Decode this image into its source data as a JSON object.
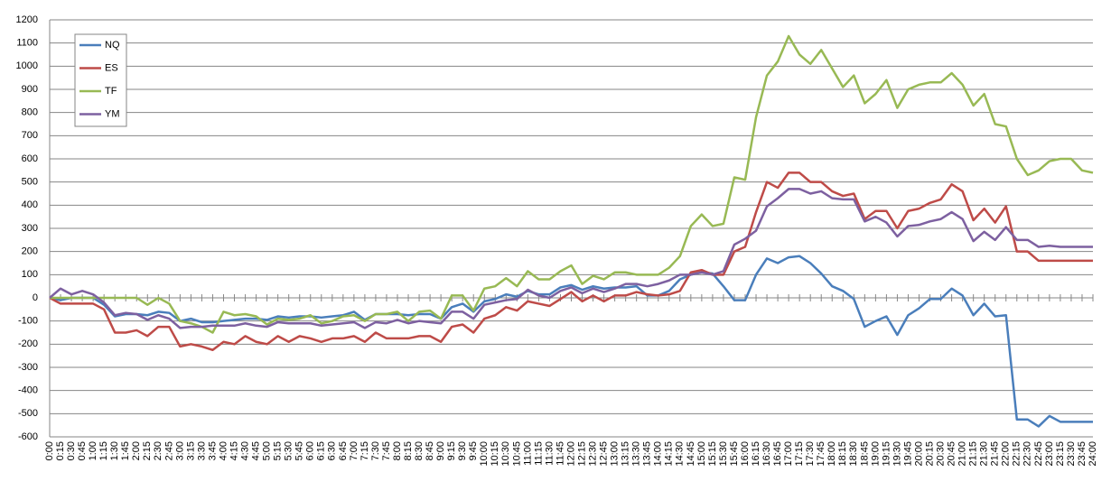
{
  "chart_data": {
    "type": "line",
    "categories": [
      "0:00",
      "0:15",
      "0:30",
      "0:45",
      "1:00",
      "1:15",
      "1:30",
      "1:45",
      "2:00",
      "2:15",
      "2:30",
      "2:45",
      "3:00",
      "3:15",
      "3:30",
      "3:45",
      "4:00",
      "4:15",
      "4:30",
      "4:45",
      "5:00",
      "5:15",
      "5:30",
      "5:45",
      "6:00",
      "6:15",
      "6:30",
      "6:45",
      "7:00",
      "7:15",
      "7:30",
      "7:45",
      "8:00",
      "8:15",
      "8:30",
      "8:45",
      "9:00",
      "9:15",
      "9:30",
      "9:45",
      "10:00",
      "10:15",
      "10:30",
      "10:45",
      "11:00",
      "11:15",
      "11:30",
      "11:45",
      "12:00",
      "12:15",
      "12:30",
      "12:45",
      "13:00",
      "13:15",
      "13:30",
      "13:45",
      "14:00",
      "14:15",
      "14:30",
      "14:45",
      "15:00",
      "15:15",
      "15:30",
      "15:45",
      "16:00",
      "16:15",
      "16:30",
      "16:45",
      "17:00",
      "17:15",
      "17:30",
      "17:45",
      "18:00",
      "18:15",
      "18:30",
      "18:45",
      "19:00",
      "19:15",
      "19:30",
      "19:45",
      "20:00",
      "20:15",
      "20:30",
      "20:45",
      "21:00",
      "21:15",
      "21:30",
      "21:45",
      "22:00",
      "22:15",
      "22:30",
      "22:45",
      "23:00",
      "23:15",
      "23:30",
      "23:45",
      "24:00"
    ],
    "series": [
      {
        "name": "NQ",
        "color": "#4a7ebb",
        "values": [
          0,
          -10,
          0,
          0,
          0,
          -30,
          -80,
          -70,
          -70,
          -75,
          -60,
          -65,
          -100,
          -90,
          -105,
          -105,
          -100,
          -95,
          -90,
          -90,
          -95,
          -80,
          -85,
          -80,
          -80,
          -85,
          -80,
          -75,
          -60,
          -95,
          -70,
          -70,
          -70,
          -75,
          -70,
          -70,
          -90,
          -40,
          -25,
          -60,
          -15,
          -5,
          15,
          5,
          30,
          15,
          15,
          45,
          55,
          35,
          50,
          40,
          45,
          45,
          50,
          10,
          10,
          30,
          80,
          100,
          110,
          105,
          50,
          -10,
          -10,
          100,
          170,
          150,
          175,
          180,
          150,
          105,
          50,
          30,
          -5,
          -125,
          -100,
          -80,
          -160,
          -75,
          -45,
          -5,
          -5,
          40,
          10,
          -75,
          -25,
          -80,
          -75,
          -525,
          -525,
          -555,
          -510,
          -535,
          -535,
          -535,
          -535
        ]
      },
      {
        "name": "ES",
        "color": "#be4b48",
        "values": [
          0,
          -25,
          -25,
          -25,
          -25,
          -50,
          -150,
          -150,
          -140,
          -165,
          -125,
          -125,
          -210,
          -200,
          -210,
          -225,
          -190,
          -200,
          -165,
          -190,
          -200,
          -165,
          -190,
          -165,
          -175,
          -190,
          -175,
          -175,
          -165,
          -190,
          -150,
          -175,
          -175,
          -175,
          -165,
          -165,
          -190,
          -125,
          -115,
          -150,
          -90,
          -75,
          -40,
          -55,
          -15,
          -25,
          -35,
          -5,
          25,
          -15,
          10,
          -15,
          10,
          10,
          25,
          15,
          10,
          15,
          30,
          110,
          120,
          100,
          100,
          200,
          220,
          370,
          500,
          475,
          540,
          540,
          500,
          500,
          460,
          440,
          450,
          340,
          375,
          375,
          300,
          375,
          385,
          410,
          425,
          490,
          460,
          335,
          385,
          325,
          395,
          200,
          200,
          160,
          160,
          160,
          160,
          160,
          160
        ]
      },
      {
        "name": "TF",
        "color": "#98b954",
        "values": [
          0,
          0,
          0,
          0,
          0,
          0,
          0,
          0,
          0,
          -30,
          0,
          -25,
          -100,
          -110,
          -125,
          -150,
          -60,
          -75,
          -70,
          -80,
          -115,
          -90,
          -95,
          -90,
          -75,
          -110,
          -100,
          -80,
          -75,
          -100,
          -70,
          -70,
          -60,
          -100,
          -60,
          -55,
          -90,
          10,
          10,
          -55,
          40,
          50,
          85,
          50,
          115,
          80,
          80,
          115,
          140,
          60,
          95,
          80,
          110,
          110,
          100,
          100,
          100,
          130,
          180,
          310,
          360,
          310,
          320,
          520,
          510,
          780,
          960,
          1020,
          1130,
          1050,
          1010,
          1070,
          990,
          910,
          960,
          840,
          880,
          940,
          820,
          900,
          920,
          930,
          930,
          970,
          920,
          830,
          880,
          750,
          740,
          600,
          530,
          550,
          590,
          600,
          600,
          550,
          540
        ]
      },
      {
        "name": "YM",
        "color": "#7d60a0",
        "values": [
          0,
          40,
          15,
          30,
          15,
          -20,
          -75,
          -65,
          -70,
          -95,
          -75,
          -90,
          -130,
          -125,
          -125,
          -120,
          -120,
          -120,
          -110,
          -120,
          -125,
          -105,
          -110,
          -110,
          -110,
          -120,
          -115,
          -110,
          -105,
          -130,
          -105,
          -110,
          -95,
          -110,
          -100,
          -105,
          -110,
          -60,
          -60,
          -90,
          -30,
          -20,
          -10,
          -5,
          35,
          10,
          0,
          30,
          45,
          20,
          40,
          25,
          40,
          60,
          60,
          50,
          60,
          75,
          100,
          100,
          110,
          100,
          115,
          230,
          255,
          290,
          395,
          430,
          470,
          470,
          450,
          460,
          430,
          425,
          425,
          330,
          350,
          325,
          265,
          310,
          315,
          330,
          340,
          370,
          340,
          245,
          285,
          250,
          305,
          250,
          250,
          220,
          225,
          220,
          220,
          220,
          220
        ]
      }
    ],
    "ylim": [
      -600,
      1200
    ],
    "yticks": [
      -600,
      -500,
      -400,
      -300,
      -200,
      -100,
      0,
      100,
      200,
      300,
      400,
      500,
      600,
      700,
      800,
      900,
      1000,
      1100,
      1200
    ],
    "grid": true,
    "legend": "top-left"
  }
}
